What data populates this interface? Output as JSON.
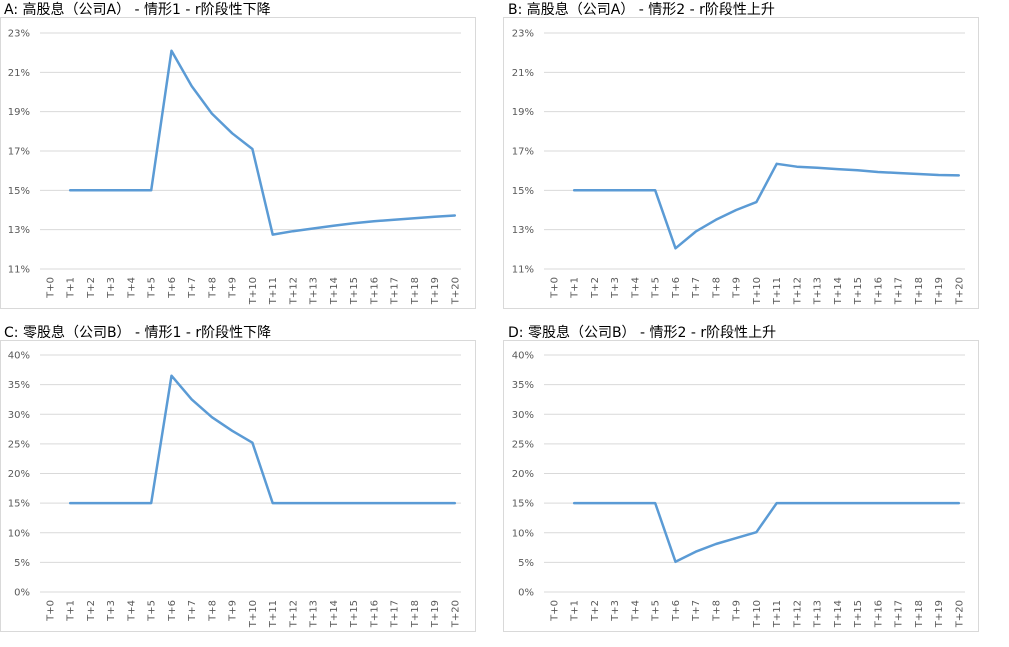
{
  "chart_data": [
    {
      "type": "line",
      "title": "A: 高股息（公司A） - 情形1 - r阶段性下降",
      "categories": [
        "T+0",
        "T+1",
        "T+2",
        "T+3",
        "T+4",
        "T+5",
        "T+6",
        "T+7",
        "T+8",
        "T+9",
        "T+10",
        "T+11",
        "T+12",
        "T+13",
        "T+14",
        "T+15",
        "T+16",
        "T+17",
        "T+18",
        "T+19",
        "T+20"
      ],
      "y_ticks": [
        "23%",
        "21%",
        "19%",
        "17%",
        "15%",
        "13%",
        "11%"
      ],
      "ylim": [
        11,
        23
      ],
      "series": [
        {
          "values": [
            null,
            15,
            15,
            15,
            15,
            15,
            22.1,
            20.3,
            18.9,
            17.9,
            17.1,
            12.75,
            12.92,
            13.06,
            13.2,
            13.33,
            13.43,
            13.5,
            13.58,
            13.66,
            13.72
          ]
        }
      ],
      "grid": true,
      "color": "#5b9bd5"
    },
    {
      "type": "line",
      "title": "B: 高股息（公司A） - 情形2 - r阶段性上升",
      "categories": [
        "T+0",
        "T+1",
        "T+2",
        "T+3",
        "T+4",
        "T+5",
        "T+6",
        "T+7",
        "T+8",
        "T+9",
        "T+10",
        "T+11",
        "T+12",
        "T+13",
        "T+14",
        "T+15",
        "T+16",
        "T+17",
        "T+18",
        "T+19",
        "T+20"
      ],
      "y_ticks": [
        "23%",
        "21%",
        "19%",
        "17%",
        "15%",
        "13%",
        "11%"
      ],
      "ylim": [
        11,
        23
      ],
      "series": [
        {
          "values": [
            null,
            15,
            15,
            15,
            15,
            15,
            12.05,
            12.9,
            13.5,
            14,
            14.4,
            16.35,
            16.2,
            16.15,
            16.08,
            16.02,
            15.93,
            15.88,
            15.83,
            15.78,
            15.76
          ]
        }
      ],
      "grid": true,
      "color": "#5b9bd5"
    },
    {
      "type": "line",
      "title": "C: 零股息（公司B） - 情形1 - r阶段性下降",
      "categories": [
        "T+0",
        "T+1",
        "T+2",
        "T+3",
        "T+4",
        "T+5",
        "T+6",
        "T+7",
        "T+8",
        "T+9",
        "T+10",
        "T+11",
        "T+12",
        "T+13",
        "T+14",
        "T+15",
        "T+16",
        "T+17",
        "T+18",
        "T+19",
        "T+20"
      ],
      "y_ticks": [
        "40%",
        "35%",
        "30%",
        "25%",
        "20%",
        "15%",
        "10%",
        "5%",
        "0%"
      ],
      "ylim": [
        0,
        40
      ],
      "series": [
        {
          "values": [
            null,
            15,
            15,
            15,
            15,
            15,
            36.5,
            32.5,
            29.5,
            27.2,
            25.2,
            15,
            15,
            15,
            15,
            15,
            15,
            15,
            15,
            15,
            15
          ]
        }
      ],
      "grid": true,
      "color": "#5b9bd5"
    },
    {
      "type": "line",
      "title": "D: 零股息（公司B） - 情形2 - r阶段性上升",
      "categories": [
        "T+0",
        "T+1",
        "T+2",
        "T+3",
        "T+4",
        "T+5",
        "T+6",
        "T+7",
        "T+8",
        "T+9",
        "T+10",
        "T+11",
        "T+12",
        "T+13",
        "T+14",
        "T+15",
        "T+16",
        "T+17",
        "T+18",
        "T+19",
        "T+20"
      ],
      "y_ticks": [
        "40%",
        "35%",
        "30%",
        "25%",
        "20%",
        "15%",
        "10%",
        "5%",
        "0%"
      ],
      "ylim": [
        0,
        40
      ],
      "series": [
        {
          "values": [
            null,
            15,
            15,
            15,
            15,
            15,
            5.1,
            6.8,
            8.1,
            9.1,
            10.1,
            15,
            15,
            15,
            15,
            15,
            15,
            15,
            15,
            15,
            15
          ]
        }
      ],
      "grid": true,
      "color": "#5b9bd5"
    }
  ]
}
